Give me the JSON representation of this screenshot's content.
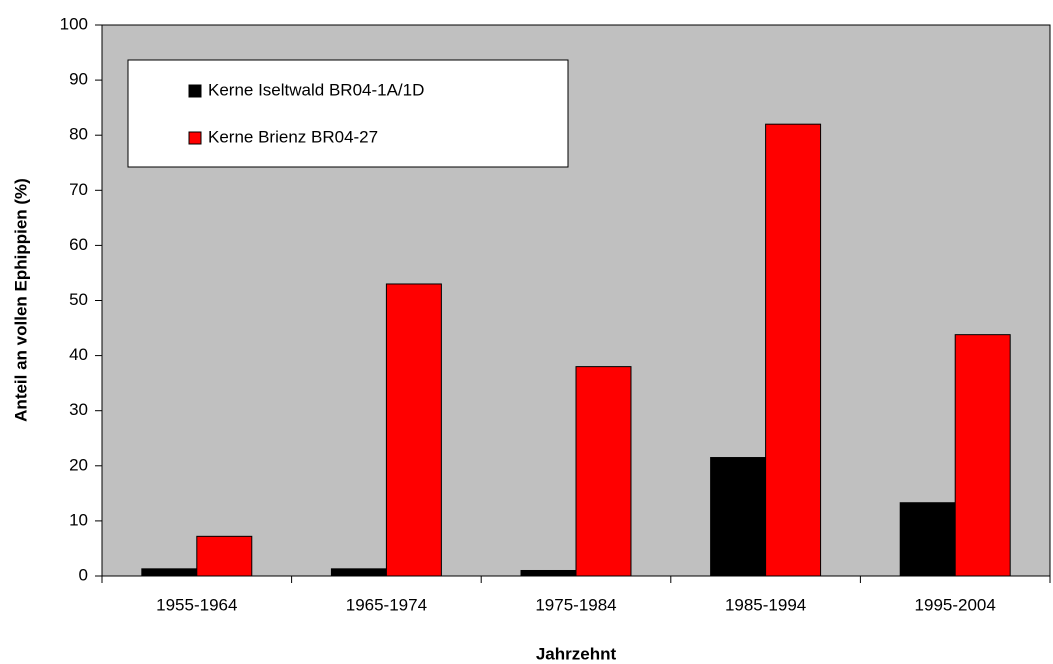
{
  "chart_data": {
    "type": "bar",
    "x_label": "Jahrzehnt",
    "y_label": "Anteil an vollen Ephippien (%)",
    "categories": [
      "1955-1964",
      "1965-1974",
      "1975-1984",
      "1985-1994",
      "1995-2004"
    ],
    "series": [
      {
        "name": "Kerne Iseltwald BR04-1A/1D",
        "color": "#000000",
        "values": [
          1.3,
          1.3,
          1.0,
          21.5,
          13.3
        ]
      },
      {
        "name": "Kerne Brienz BR04-27",
        "color": "#ff0000",
        "values": [
          7.2,
          53,
          38,
          82,
          43.8
        ]
      }
    ],
    "ylim": [
      0,
      100
    ],
    "yticks": [
      0,
      10,
      20,
      30,
      40,
      50,
      60,
      70,
      80,
      90,
      100
    ],
    "grid": false,
    "legend_position": "top-left",
    "plot_background": "#c0c0c0"
  }
}
